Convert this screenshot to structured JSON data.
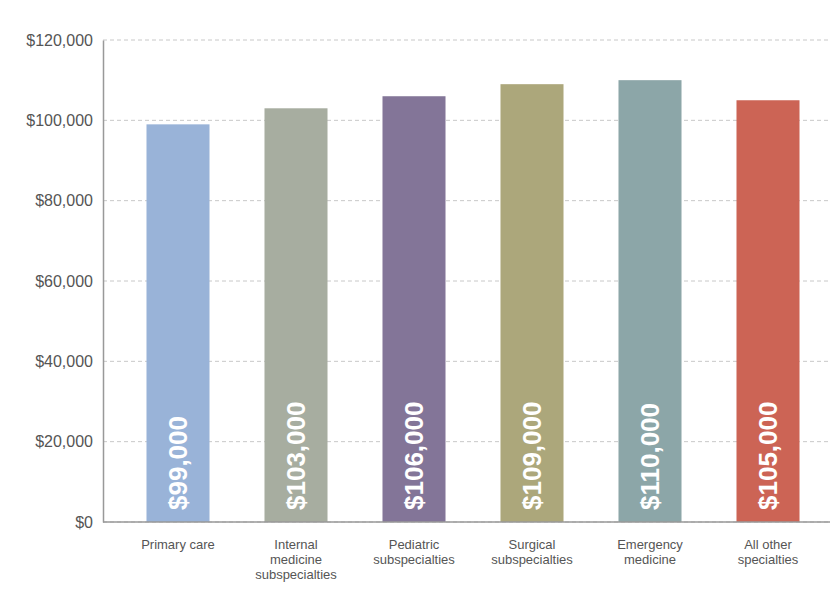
{
  "chart_data": {
    "type": "bar",
    "categories": [
      "Primary care",
      "Internal medicine subspecialties",
      "Pediatric subspecialties",
      "Surgical subspecialties",
      "Emergency medicine",
      "All other specialties"
    ],
    "values": [
      99000,
      103000,
      106000,
      109000,
      110000,
      105000
    ],
    "value_labels": [
      "$99,000",
      "$103,000",
      "$106,000",
      "$109,000",
      "$110,000",
      "$105,000"
    ],
    "colors": [
      "#99b3d8",
      "#a7ada0",
      "#837598",
      "#aca77b",
      "#8ca6a8",
      "#cc6455"
    ],
    "ylim": [
      0,
      120000
    ],
    "yticks": [
      {
        "value": 0,
        "label": "$0"
      },
      {
        "value": 20000,
        "label": "$20,000"
      },
      {
        "value": 40000,
        "label": "$40,000"
      },
      {
        "value": 60000,
        "label": "$60,000"
      },
      {
        "value": 80000,
        "label": "$80,000"
      },
      {
        "value": 100000,
        "label": "$100,000"
      },
      {
        "value": 120000,
        "label": "$120,000"
      }
    ],
    "grid": true,
    "data_labels": true
  }
}
